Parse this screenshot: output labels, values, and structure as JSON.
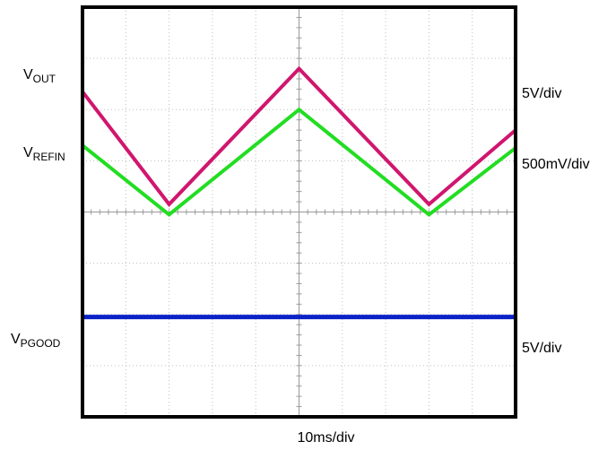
{
  "chart_data": {
    "type": "line",
    "x_divisions": 10,
    "y_divisions": 8,
    "grid": true,
    "xlabel": "10ms/div",
    "series": [
      {
        "name": "V",
        "name_sub": "OUT",
        "scale": "5V/div",
        "color": "#d0166e",
        "points": [
          [
            0,
            6.35
          ],
          [
            2,
            4.15
          ],
          [
            5,
            6.8
          ],
          [
            8,
            4.15
          ],
          [
            10,
            5.6
          ]
        ]
      },
      {
        "name": "V",
        "name_sub": "REFIN",
        "scale": "500mV/div",
        "color": "#22dd22",
        "points": [
          [
            0,
            5.3
          ],
          [
            2,
            3.95
          ],
          [
            5,
            6.0
          ],
          [
            8,
            3.95
          ],
          [
            10,
            5.25
          ]
        ]
      },
      {
        "name": "V",
        "name_sub": "PGOOD",
        "scale": "5V/div",
        "color": "#0b22c8",
        "points": [
          [
            0,
            1.95
          ],
          [
            10,
            1.95
          ]
        ]
      }
    ]
  }
}
